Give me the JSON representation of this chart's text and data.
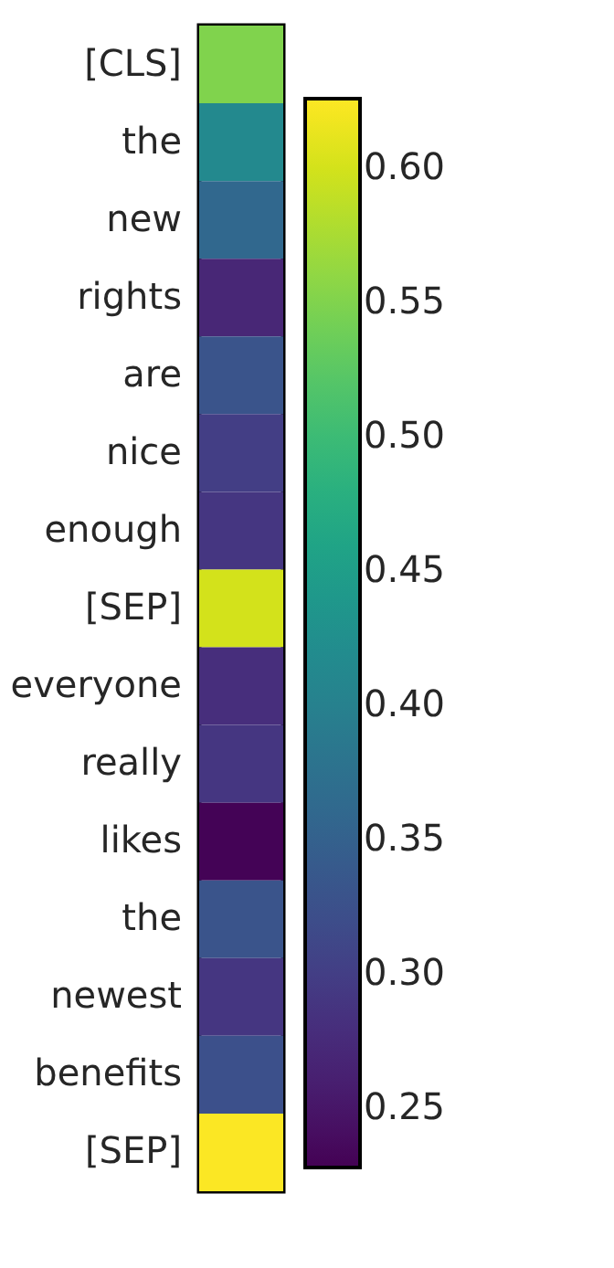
{
  "chart_data": {
    "type": "heatmap",
    "categories": [
      null
    ],
    "y_categories": [
      "[CLS]",
      "the",
      "new",
      "rights",
      "are",
      "nice",
      "enough",
      "[SEP]",
      "everyone",
      "really",
      "likes",
      "the",
      "newest",
      "benefits",
      "[SEP]"
    ],
    "cells": [
      [
        0.55
      ],
      [
        0.415
      ],
      [
        0.36
      ],
      [
        0.27
      ],
      [
        0.33
      ],
      [
        0.3
      ],
      [
        0.29
      ],
      [
        0.6
      ],
      [
        0.28
      ],
      [
        0.29
      ],
      [
        0.23
      ],
      [
        0.33
      ],
      [
        0.29
      ],
      [
        0.325
      ],
      [
        0.625
      ]
    ],
    "clim": [
      0.228,
      0.626
    ],
    "cticks": [
      0.25,
      {
        "value": 0.3,
        "label": "0.30"
      },
      0.35,
      {
        "value": 0.4,
        "label": "0.40"
      },
      0.45,
      {
        "value": 0.5,
        "label": "0.50"
      },
      0.55,
      {
        "value": 0.6,
        "label": "0.60"
      }
    ]
  }
}
